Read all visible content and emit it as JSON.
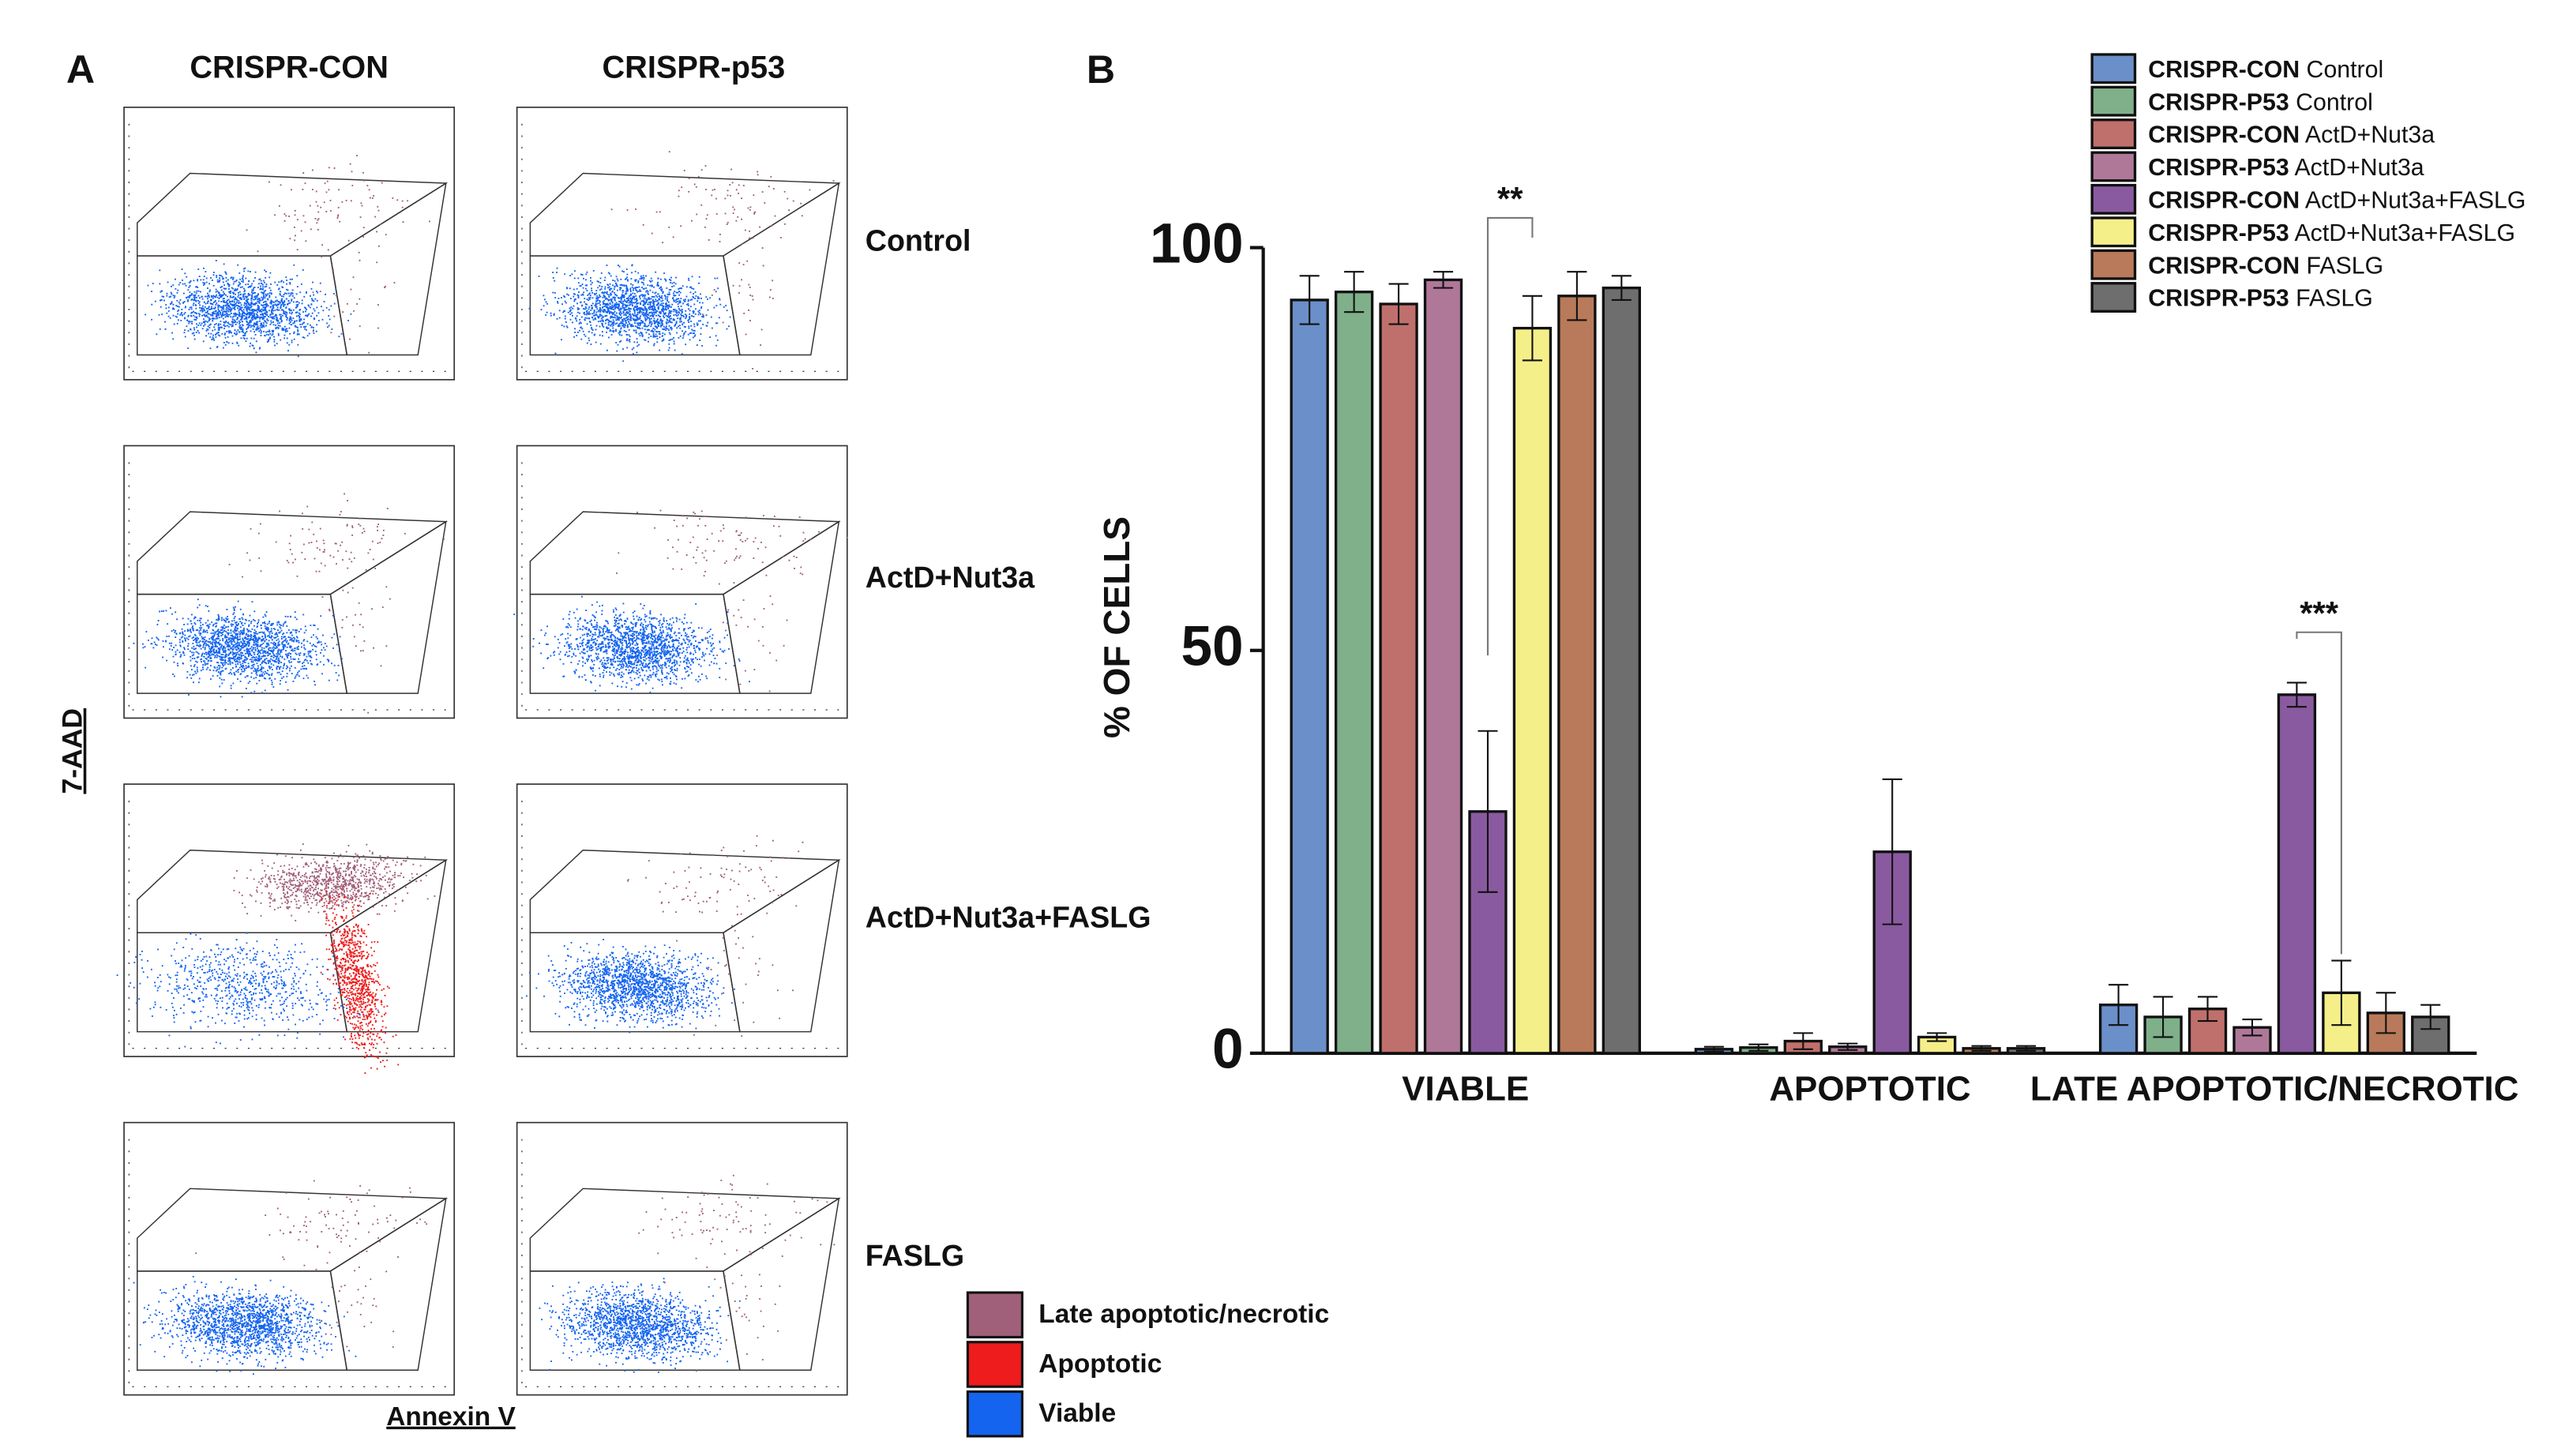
{
  "panel_a": {
    "label": "A",
    "columns": [
      "CRISPR-CON",
      "CRISPR-p53"
    ],
    "rows": [
      "Control",
      "ActD+Nut3a",
      "ActD+Nut3a+FASLG",
      "FASLG"
    ],
    "y_axis_label": "7-AAD",
    "x_axis_label": "Annexin V",
    "legend": [
      {
        "name": "Late apoptotic/necrotic",
        "color": "#a0607a"
      },
      {
        "name": "Apoptotic",
        "color": "#ee1c1c"
      },
      {
        "name": "Viable",
        "color": "#1464f0"
      }
    ]
  },
  "chart_data": {
    "type": "bar",
    "panel_label": "B",
    "categories": [
      "VIABLE",
      "APOPTOTIC",
      "LATE APOPTOTIC/NECROTIC"
    ],
    "y_axis_label": "% OF CELLS",
    "ylim": [
      0,
      100
    ],
    "yticks": [
      0,
      50,
      100
    ],
    "series": [
      {
        "name": "CRISPR-CON Control",
        "color": "#6b8fc8",
        "values": [
          93.5,
          0.5,
          6
        ],
        "errors": [
          3,
          0.3,
          2.5
        ]
      },
      {
        "name": "CRISPR-P53 Control",
        "color": "#7fb08a",
        "values": [
          94.5,
          0.7,
          4.5
        ],
        "errors": [
          2.5,
          0.4,
          2.5
        ]
      },
      {
        "name": "CRISPR-CON ActD+Nut3a",
        "color": "#c0706c",
        "values": [
          93,
          1.5,
          5.5
        ],
        "errors": [
          2.5,
          1,
          1.5
        ]
      },
      {
        "name": "CRISPR-P53 ActD+Nut3a",
        "color": "#b07898",
        "values": [
          96,
          0.8,
          3.2
        ],
        "errors": [
          1,
          0.4,
          1
        ]
      },
      {
        "name": "CRISPR-CON ActD+Nut3a+FASLG",
        "color": "#8a5aa0",
        "values": [
          30,
          25,
          44.5
        ],
        "errors": [
          10,
          9,
          1.5
        ]
      },
      {
        "name": "CRISPR-P53 ActD+Nut3a+FASLG",
        "color": "#f5ef8a",
        "values": [
          90,
          2,
          7.5
        ],
        "errors": [
          4,
          0.5,
          4
        ]
      },
      {
        "name": "CRISPR-CON FASLG",
        "color": "#b87a5a",
        "values": [
          94,
          0.6,
          5
        ],
        "errors": [
          3,
          0.3,
          2.5
        ]
      },
      {
        "name": "CRISPR-P53 FASLG",
        "color": "#6e6e6e",
        "values": [
          95,
          0.6,
          4.5
        ],
        "errors": [
          1.5,
          0.3,
          1.5
        ]
      }
    ],
    "annotations": [
      "**",
      "***"
    ]
  }
}
